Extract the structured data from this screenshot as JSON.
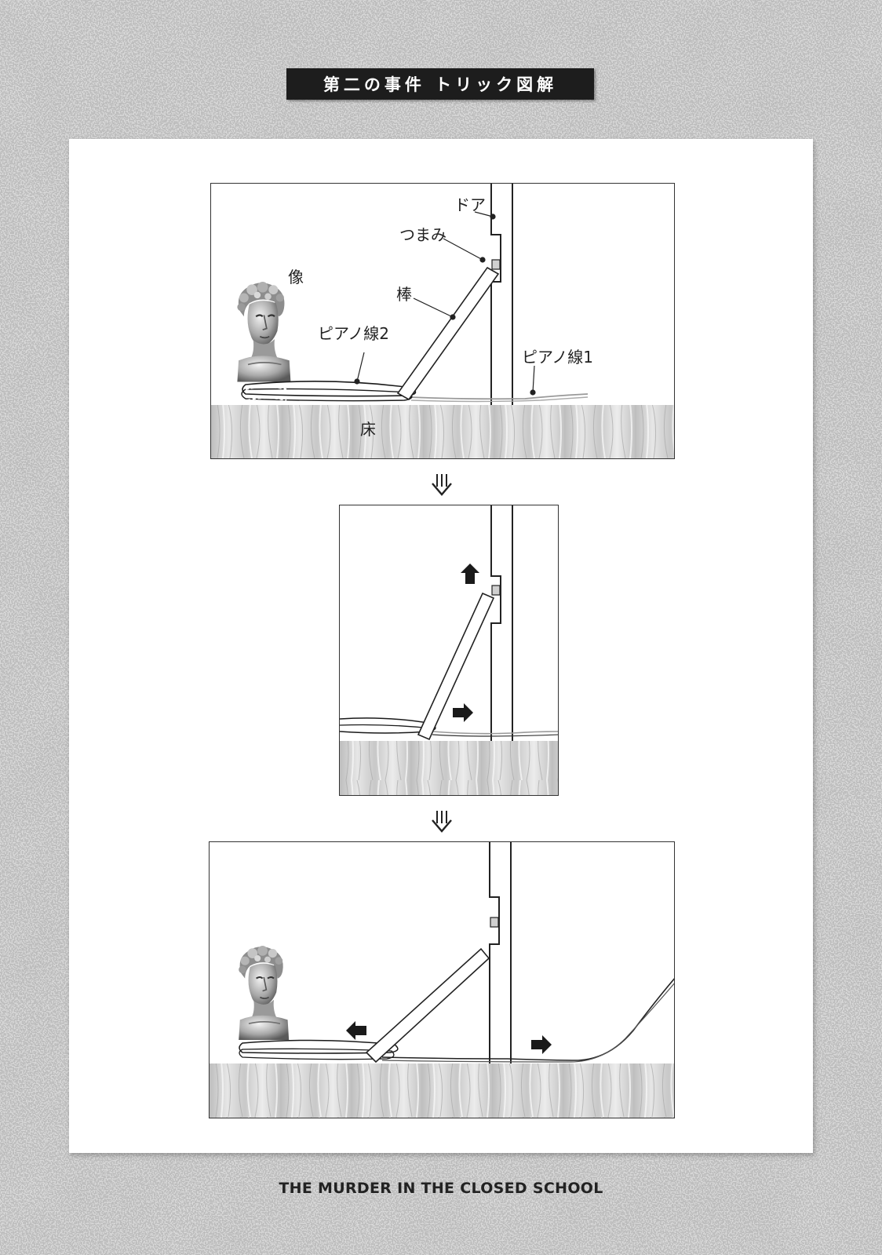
{
  "header": {
    "title": "第二の事件 トリック図解"
  },
  "footer": {
    "text": "THE MURDER IN THE CLOSED SCHOOL"
  },
  "panel1": {
    "labels": {
      "door": "ドア",
      "knob": "つまみ",
      "statue": "像",
      "stick": "棒",
      "wire2": "ピアノ線2",
      "wire1": "ピアノ線1",
      "floor": "床"
    }
  },
  "colors": {
    "background": "#cfcfcf",
    "card": "#ffffff",
    "banner": "#1d1d1d",
    "ink": "#222222"
  },
  "icons": {
    "step_arrow": "double-down-arrow-icon",
    "motion_arrow": "bold-arrow-icon",
    "statue": "bust-statue-icon"
  }
}
